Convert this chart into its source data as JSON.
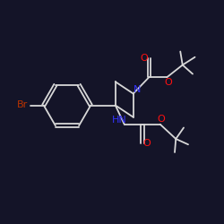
{
  "bg_color": "#141428",
  "bond_color": "#d8d8d8",
  "atom_colors": {
    "N": "#3333ff",
    "O": "#ff1111",
    "Br": "#bb3300"
  },
  "lw": 1.3
}
